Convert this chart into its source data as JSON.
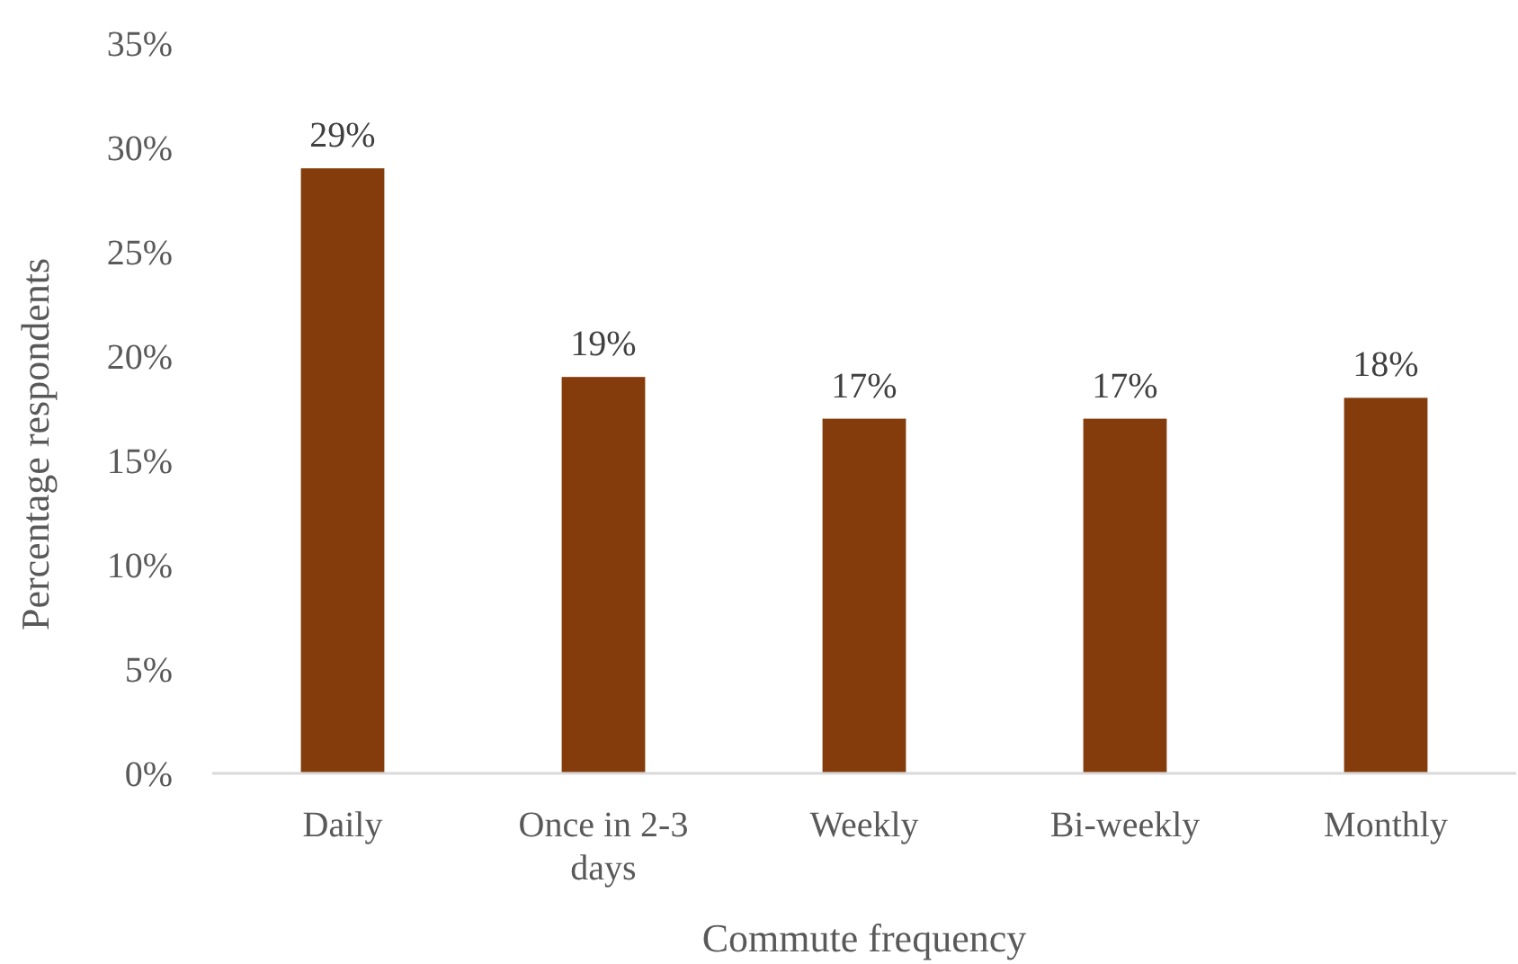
{
  "chart_data": {
    "type": "bar",
    "xlabel": "Commute frequency",
    "ylabel": "Percentage respondents",
    "categories": [
      "Daily",
      "Once in 2-3 days",
      "Weekly",
      "Bi-weekly",
      "Monthly"
    ],
    "values": [
      29,
      19,
      17,
      17,
      18
    ],
    "color": "#843c0c",
    "value_labels": [
      "29%",
      "19%",
      "17%",
      "17%",
      "18%"
    ],
    "ylim": [
      0,
      35
    ],
    "yticks": [
      {
        "value": 0,
        "label": "0%"
      },
      {
        "value": 5,
        "label": "5%"
      },
      {
        "value": 10,
        "label": "10%"
      },
      {
        "value": 15,
        "label": "15%"
      },
      {
        "value": 20,
        "label": "20%"
      },
      {
        "value": 25,
        "label": "25%"
      },
      {
        "value": 30,
        "label": "30%"
      },
      {
        "value": 35,
        "label": "35%"
      }
    ],
    "grid": false
  }
}
